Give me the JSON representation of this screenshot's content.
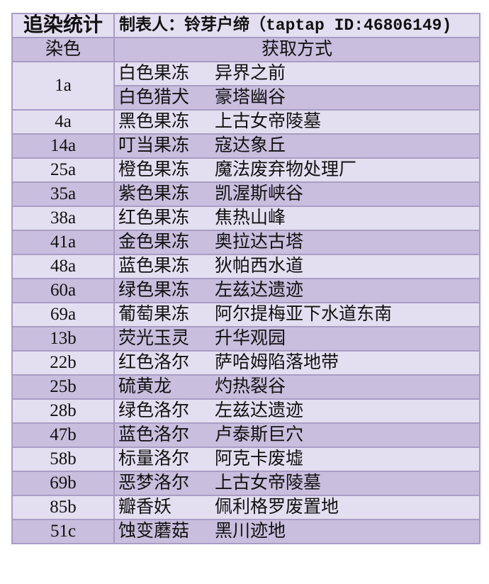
{
  "header": {
    "title": "追染统计",
    "maker": "制表人：铃芽户缔（taptap ID:46806149)",
    "col_dye": "染色",
    "col_method": "获取方式"
  },
  "colors": {
    "light_row": "#e4dff0",
    "dark_row": "#c9bedd",
    "border": "#a99cc6"
  },
  "rows": [
    {
      "dye": "1a",
      "methods": [
        {
          "item": "白色果冻",
          "place": "异界之前"
        },
        {
          "item": "白色猎犬",
          "place": "豪塔幽谷"
        }
      ]
    },
    {
      "dye": "4a",
      "methods": [
        {
          "item": "黑色果冻",
          "place": "上古女帝陵墓"
        }
      ]
    },
    {
      "dye": "14a",
      "methods": [
        {
          "item": "叮当果冻",
          "place": "寇达象丘"
        }
      ]
    },
    {
      "dye": "25a",
      "methods": [
        {
          "item": "橙色果冻",
          "place": "魔法废弃物处理厂"
        }
      ]
    },
    {
      "dye": "35a",
      "methods": [
        {
          "item": "紫色果冻",
          "place": "凯渥斯峡谷"
        }
      ]
    },
    {
      "dye": "38a",
      "methods": [
        {
          "item": "红色果冻",
          "place": "焦热山峰"
        }
      ]
    },
    {
      "dye": "41a",
      "methods": [
        {
          "item": "金色果冻",
          "place": "奥拉达古塔"
        }
      ]
    },
    {
      "dye": "48a",
      "methods": [
        {
          "item": "蓝色果冻",
          "place": "狄帕西水道"
        }
      ]
    },
    {
      "dye": "60a",
      "methods": [
        {
          "item": "绿色果冻",
          "place": "左兹达遗迹"
        }
      ]
    },
    {
      "dye": "69a",
      "methods": [
        {
          "item": "葡萄果冻",
          "place": "阿尔提梅亚下水道东南"
        }
      ]
    },
    {
      "dye": "13b",
      "methods": [
        {
          "item": "荧光玉灵",
          "place": "升华观园"
        }
      ]
    },
    {
      "dye": "22b",
      "methods": [
        {
          "item": "红色洛尔",
          "place": "萨哈姆陷落地带"
        }
      ]
    },
    {
      "dye": "25b",
      "methods": [
        {
          "item": "硫黄龙",
          "place": "灼热裂谷"
        }
      ]
    },
    {
      "dye": "28b",
      "methods": [
        {
          "item": "绿色洛尔",
          "place": "左兹达遗迹"
        }
      ]
    },
    {
      "dye": "47b",
      "methods": [
        {
          "item": "蓝色洛尔",
          "place": "卢泰斯巨穴"
        }
      ]
    },
    {
      "dye": "58b",
      "methods": [
        {
          "item": "标量洛尔",
          "place": "阿克卡废墟"
        }
      ]
    },
    {
      "dye": "69b",
      "methods": [
        {
          "item": "恶梦洛尔",
          "place": "上古女帝陵墓"
        }
      ]
    },
    {
      "dye": "85b",
      "methods": [
        {
          "item": "瓣香妖",
          "place": "佩利格罗废置地"
        }
      ]
    },
    {
      "dye": "51c",
      "methods": [
        {
          "item": "蚀变蘑菇",
          "place": "黑川迹地"
        }
      ]
    }
  ]
}
